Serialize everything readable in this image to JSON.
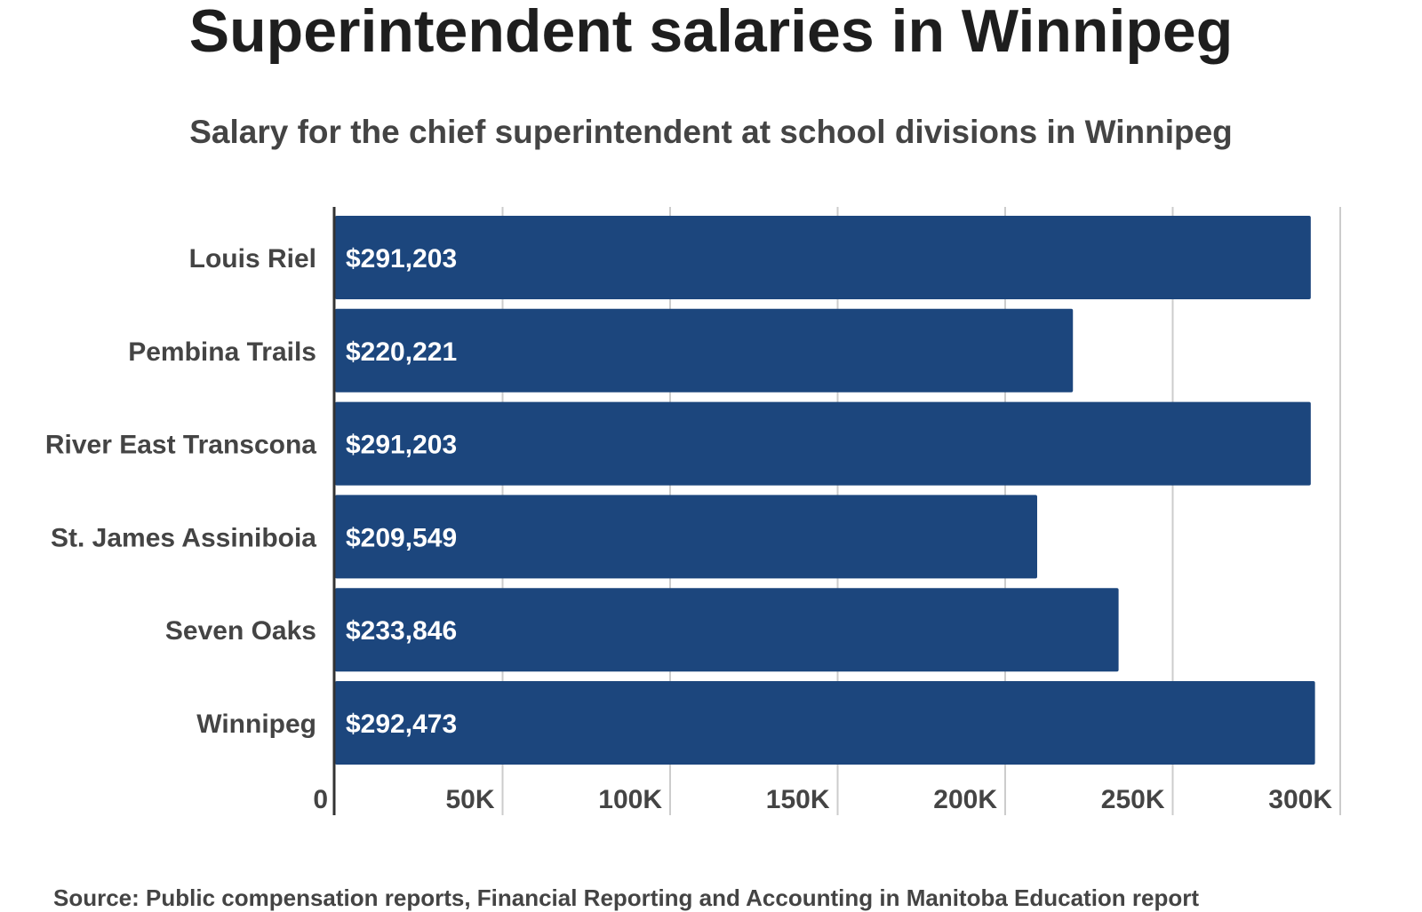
{
  "header": {
    "title": "Superintendent salaries in Winnipeg",
    "subtitle": "Salary for the chief superintendent at school divisions in Winnipeg"
  },
  "footer": {
    "source": "Source: Public compensation reports, Financial Reporting and Accounting in Manitoba Education report"
  },
  "colors": {
    "bar": "#1c467d",
    "grid": "#cccccc",
    "axis": "#333333"
  },
  "chart_data": {
    "type": "bar",
    "orientation": "horizontal",
    "title": "Superintendent salaries in Winnipeg",
    "subtitle": "Salary for the chief superintendent at school divisions in Winnipeg",
    "categories": [
      "Louis Riel",
      "Pembina Trails",
      "River East Transcona",
      "St. James Assiniboia",
      "Seven Oaks",
      "Winnipeg"
    ],
    "values": [
      291203,
      220221,
      291203,
      209549,
      233846,
      292473
    ],
    "data_labels": [
      "$291,203",
      "$220,221",
      "$291,203",
      "$209,549",
      "$233,846",
      "$292,473"
    ],
    "xlim": [
      0,
      300000
    ],
    "x_ticks": [
      0,
      50000,
      100000,
      150000,
      200000,
      250000,
      300000
    ],
    "x_tick_labels": [
      "0",
      "50K",
      "100K",
      "150K",
      "200K",
      "250K",
      "300K"
    ],
    "grid": true,
    "legend": "none"
  }
}
